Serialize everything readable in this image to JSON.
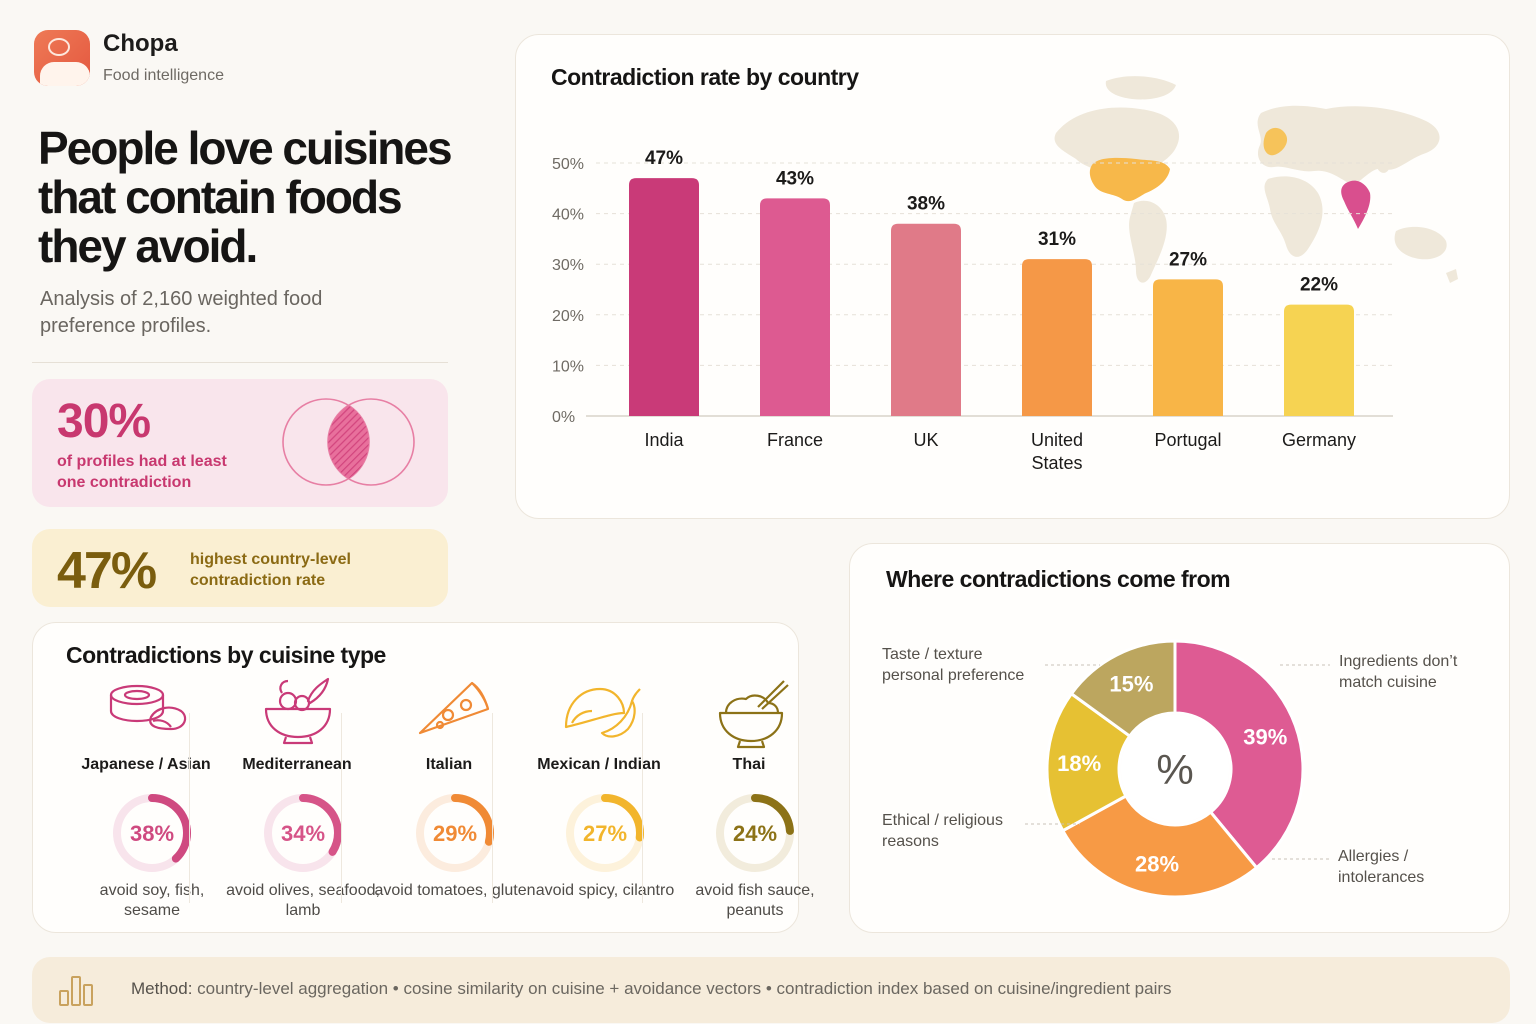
{
  "brand": {
    "name": "Chopa",
    "subtitle": "Food intelligence"
  },
  "headline": "People love cuisines that contain foods they avoid.",
  "subhead": "Analysis of 2,160 weighted food preference profiles.",
  "stats": [
    {
      "value": "30%",
      "caption": "of profiles had at least one contradiction",
      "color": "#c8386f"
    },
    {
      "value": "47%",
      "caption": "highest country-level contradiction rate",
      "color": "#7a5d0e"
    }
  ],
  "colors": {
    "india": "#c93a78",
    "france": "#dd5a91",
    "uk": "#e07a88",
    "us": "#f59847",
    "portugal": "#f8b547",
    "germany": "#f6d352",
    "map_land": "#efe8da",
    "map_us": "#f7b84a",
    "map_india": "#d94f8e"
  },
  "chart_data": [
    {
      "type": "bar",
      "title": "Contradiction rate by country",
      "categories": [
        "India",
        "France",
        "UK",
        "United States",
        "Portugal",
        "Germany"
      ],
      "category_lines": [
        [
          "India"
        ],
        [
          "France"
        ],
        [
          "UK"
        ],
        [
          "United",
          "States"
        ],
        [
          "Portugal"
        ],
        [
          "Germany"
        ]
      ],
      "values": [
        47,
        43,
        38,
        31,
        27,
        22
      ],
      "value_labels": [
        "47%",
        "43%",
        "38%",
        "31%",
        "27%",
        "22%"
      ],
      "ylim": [
        0,
        50
      ],
      "yticks": [
        0,
        10,
        20,
        30,
        40,
        50
      ],
      "ytick_labels": [
        "0%",
        "10%",
        "20%",
        "30%",
        "40%",
        "50%"
      ],
      "grid": true,
      "bar_colors": [
        "#c93a78",
        "#dd5a91",
        "#e07a88",
        "#f59847",
        "#f8b547",
        "#f6d352"
      ]
    },
    {
      "type": "pie",
      "title": "Where contradictions come from",
      "center_label": "%",
      "slices": [
        {
          "label": "Ingredients don’t match cuisine",
          "value": 39,
          "text": "39%",
          "color": "#de5b93"
        },
        {
          "label": "Allergies / intolerances",
          "value": 28,
          "text": "28%",
          "color": "#f79a45"
        },
        {
          "label": "Ethical / religious reasons",
          "value": 18,
          "text": "18%",
          "color": "#e6c133"
        },
        {
          "label": "Taste / texture personal preference",
          "value": 15,
          "text": "15%",
          "color": "#bca65f"
        }
      ]
    }
  ],
  "cuisine": {
    "title": "Contradictions by cuisine type",
    "items": [
      {
        "name": "Japanese / Asian",
        "pct": "38%",
        "value": 38,
        "avoid": "avoid soy, fish, sesame",
        "icon": "sushi-icon",
        "color": "#cf4a80",
        "track": "#f8e4ec"
      },
      {
        "name": "Mediterranean",
        "pct": "34%",
        "value": 34,
        "avoid": "avoid olives, seafood, lamb",
        "icon": "bowl-icon",
        "color": "#d65488",
        "track": "#f8e4ec"
      },
      {
        "name": "Italian",
        "pct": "29%",
        "value": 29,
        "avoid": "avoid tomatoes, gluten",
        "icon": "pizza-icon",
        "color": "#f08a35",
        "track": "#fcecde"
      },
      {
        "name": "Mexican / Indian",
        "pct": "27%",
        "value": 27,
        "avoid": "avoid spicy, cilantro",
        "icon": "taco-chili-icon",
        "color": "#f2b52c",
        "track": "#fdf2db"
      },
      {
        "name": "Thai",
        "pct": "24%",
        "value": 24,
        "avoid": "avoid fish sauce, peanuts",
        "icon": "rice-bowl-icon",
        "color": "#8c7217",
        "track": "#f2ecdc"
      }
    ]
  },
  "footer": {
    "label": "Method:",
    "text": "country-level aggregation • cosine similarity on cuisine + avoidance vectors • contradiction index based on cuisine/ingredient pairs",
    "icon": "bar-chart-icon"
  }
}
